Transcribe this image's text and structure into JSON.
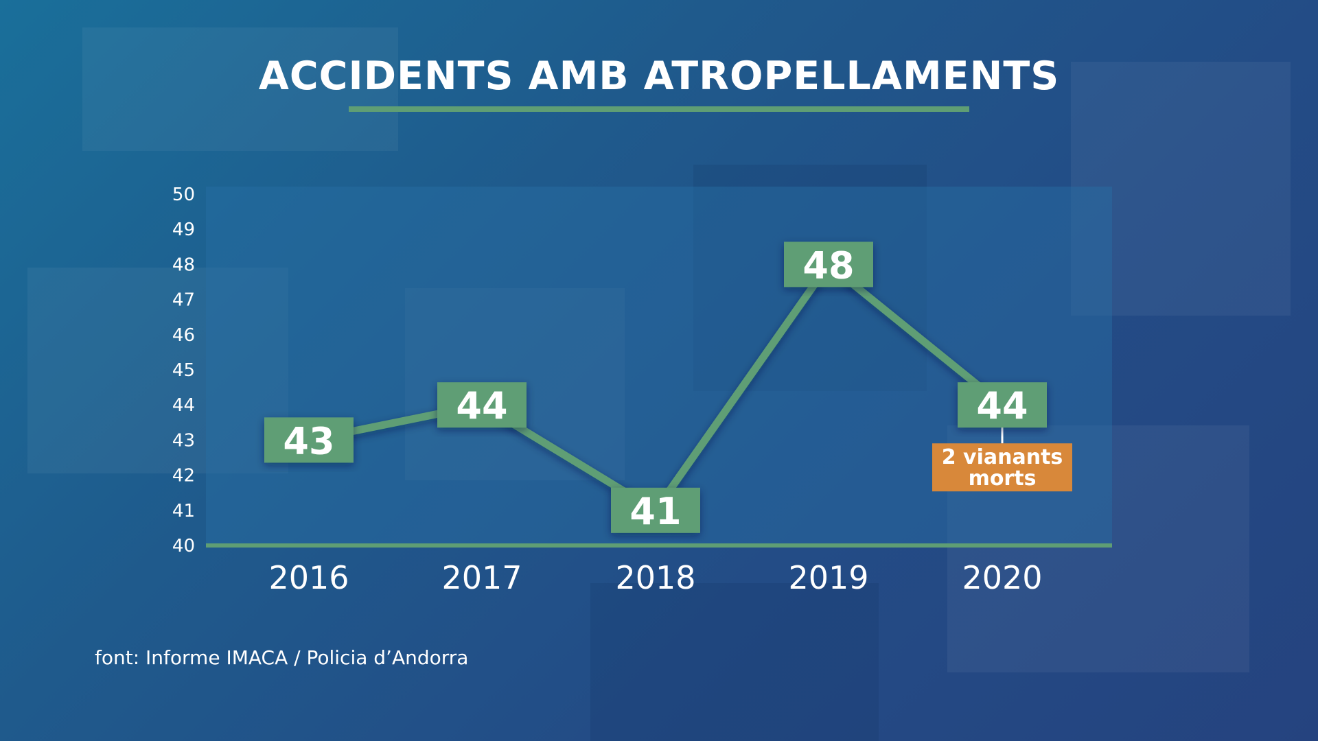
{
  "colors": {
    "line": "#5f9e74",
    "label_box": "#5f9e74",
    "annotation_box": "#d8883a",
    "text": "#ffffff"
  },
  "source": "font: Informe IMACA / Policia d’Andorra",
  "chart_data": {
    "type": "line",
    "title": "ACCIDENTS AMB ATROPELLAMENTS",
    "categories": [
      "2016",
      "2017",
      "2018",
      "2019",
      "2020"
    ],
    "values": [
      43,
      44,
      41,
      48,
      44
    ],
    "ylim": [
      40,
      50
    ],
    "yticks": [
      40,
      41,
      42,
      43,
      44,
      45,
      46,
      47,
      48,
      49,
      50
    ],
    "grid": false,
    "annotations": [
      {
        "category": "2020",
        "lines": [
          "2 vianants",
          "morts"
        ]
      }
    ]
  }
}
